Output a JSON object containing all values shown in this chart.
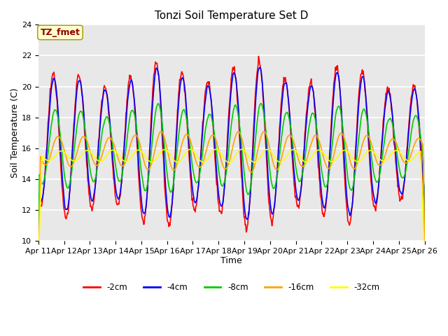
{
  "title": "Tonzi Soil Temperature Set D",
  "xlabel": "Time",
  "ylabel": "Soil Temperature (C)",
  "ylim": [
    10,
    24
  ],
  "annotation": "TZ_fmet",
  "annotation_color": "#8B0000",
  "annotation_bg": "#FFFFCC",
  "bg_color": "#E8E8E8",
  "grid_color": "white",
  "series_labels": [
    "-2cm",
    "-4cm",
    "-8cm",
    "-16cm",
    "-32cm"
  ],
  "series_colors": [
    "#FF0000",
    "#0000FF",
    "#00CC00",
    "#FFA500",
    "#FFFF00"
  ],
  "tick_labels": [
    "Apr 11",
    "Apr 12",
    "Apr 13",
    "Apr 14",
    "Apr 15",
    "Apr 16",
    "Apr 17",
    "Apr 18",
    "Apr 19",
    "Apr 20",
    "Apr 21",
    "Apr 22",
    "Apr 23",
    "Apr 24",
    "Apr 25",
    "Apr 26"
  ],
  "n_days": 15,
  "points_per_day": 48
}
